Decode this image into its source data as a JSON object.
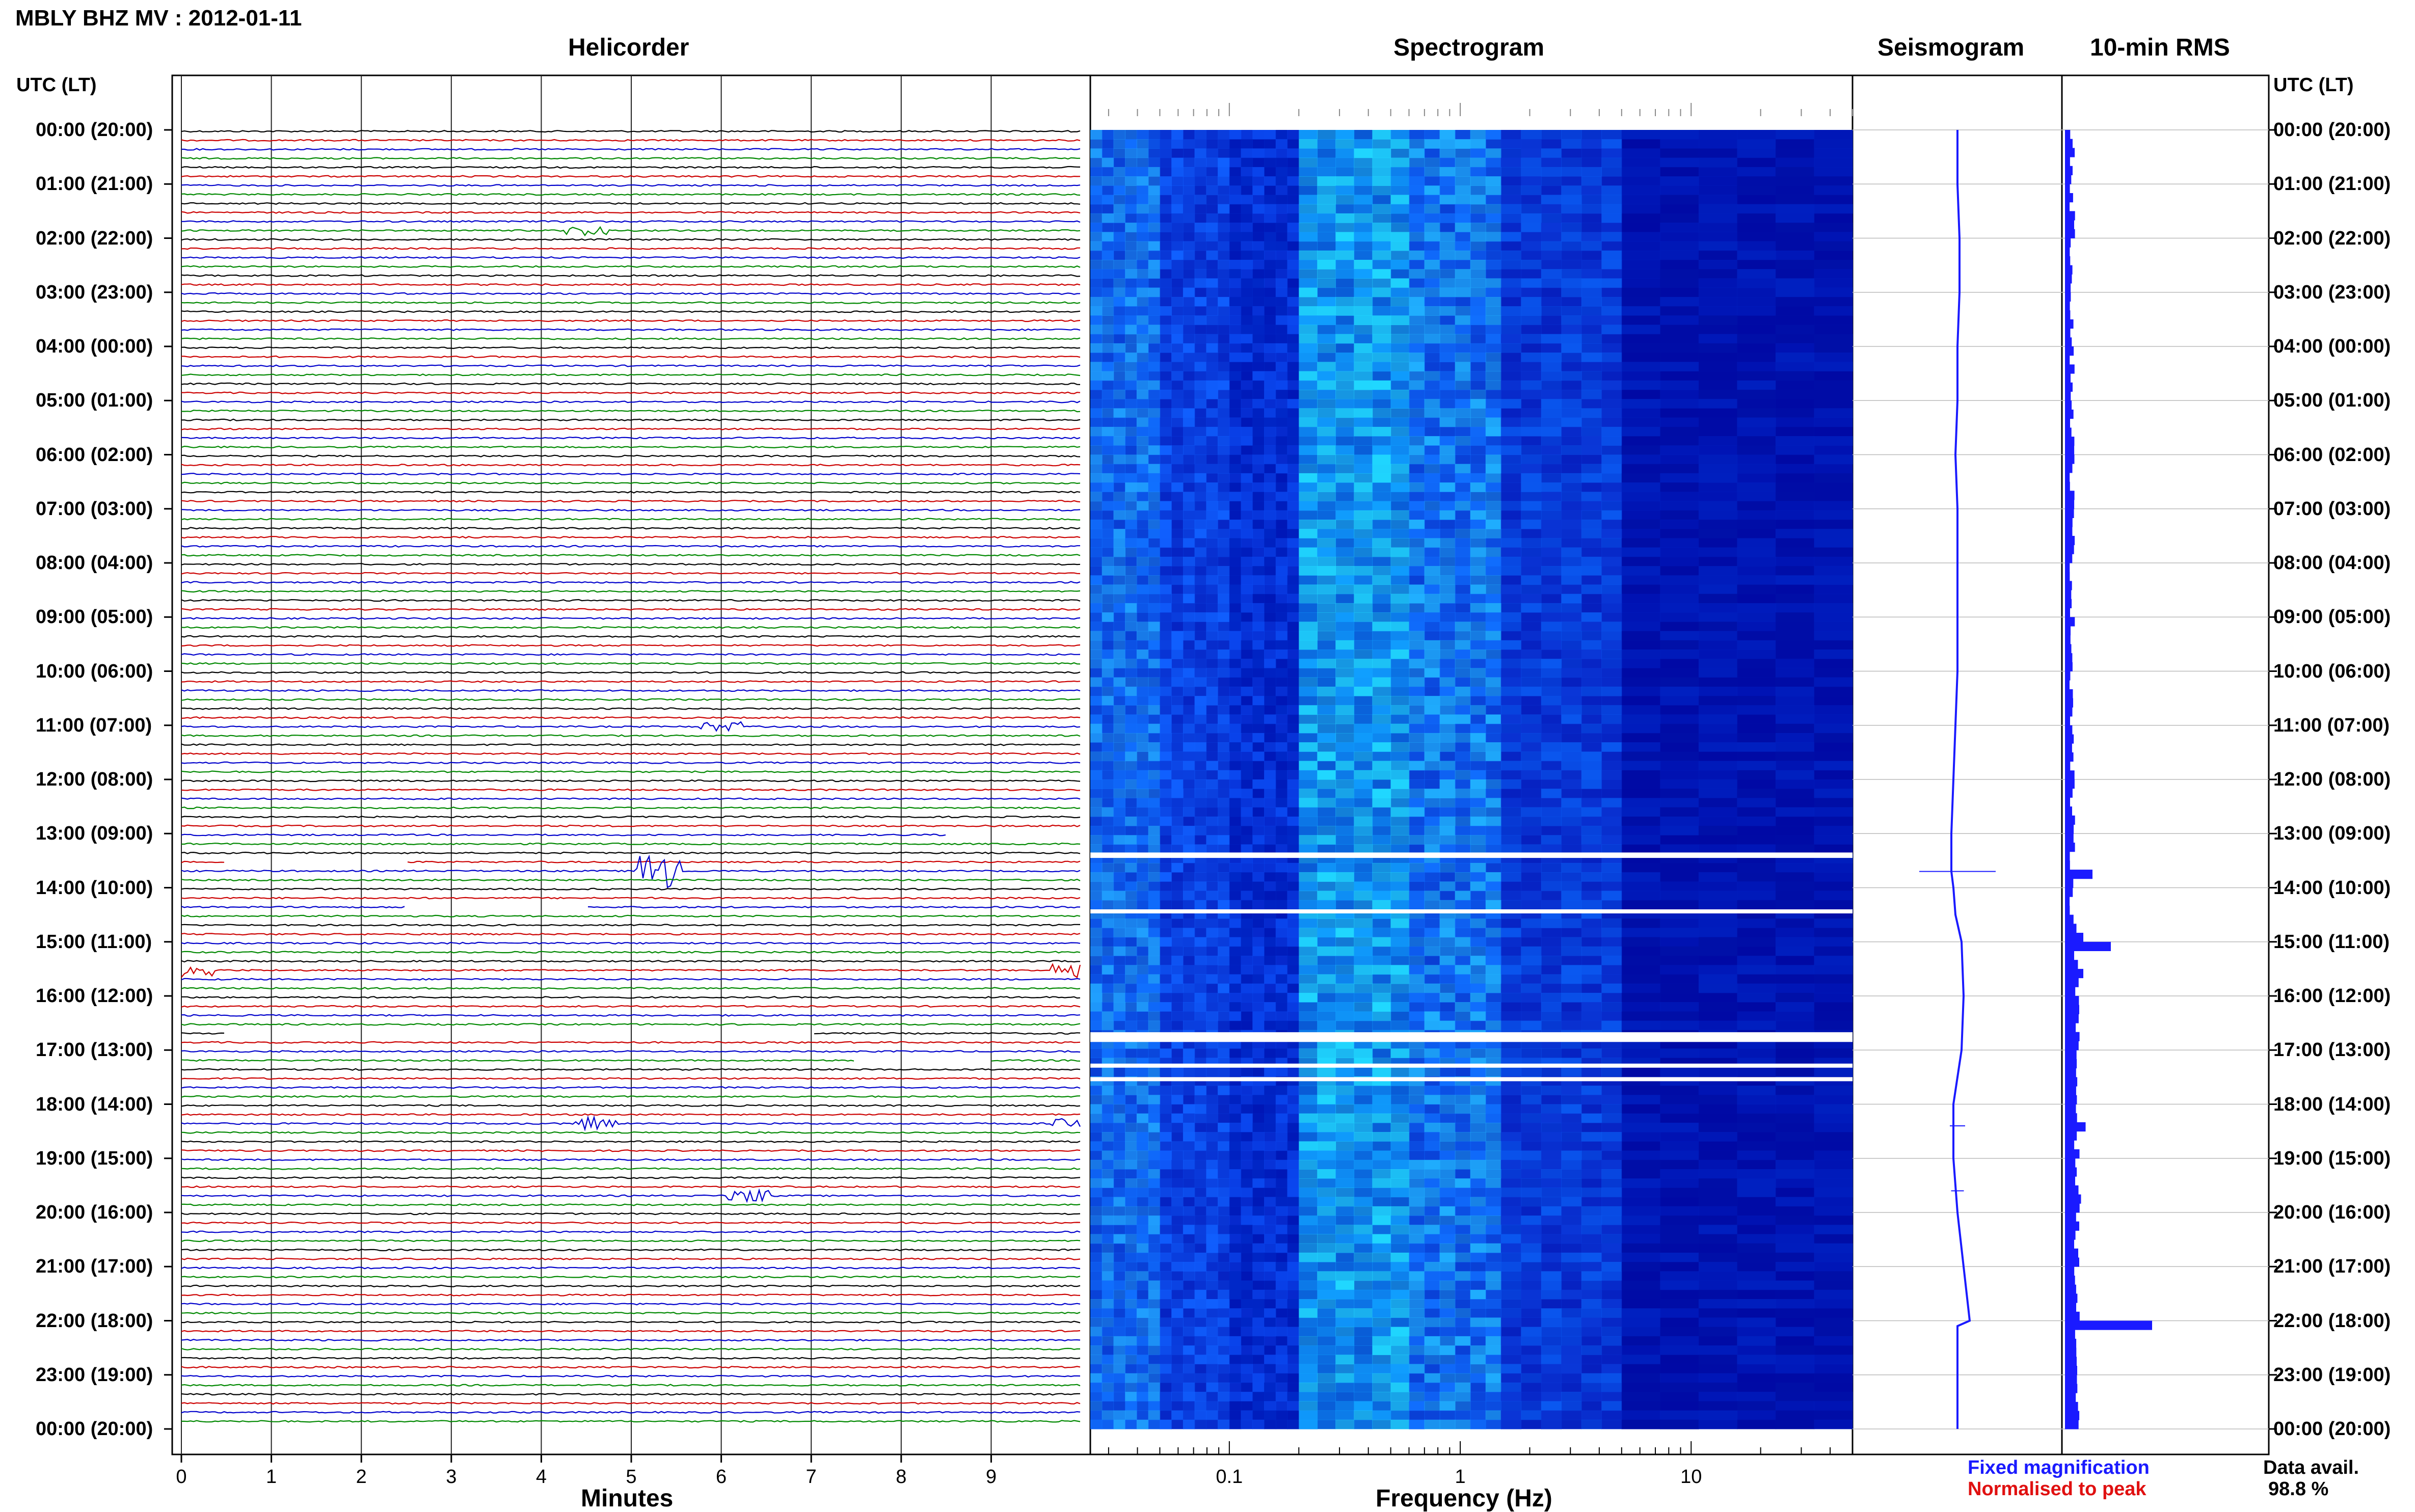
{
  "page_title": "MBLY BHZ MV : 2012-01-11",
  "panels": {
    "helicorder": "Helicorder",
    "spectrogram": "Spectrogram",
    "seismogram": "Seismogram",
    "rms": "10-min RMS"
  },
  "axis_header_left": "UTC (LT)",
  "axis_header_right": "UTC (LT)",
  "time_labels": [
    "00:00 (20:00)",
    "01:00 (21:00)",
    "02:00 (22:00)",
    "03:00 (23:00)",
    "04:00 (00:00)",
    "05:00 (01:00)",
    "06:00 (02:00)",
    "07:00 (03:00)",
    "08:00 (04:00)",
    "09:00 (05:00)",
    "10:00 (06:00)",
    "11:00 (07:00)",
    "12:00 (08:00)",
    "13:00 (09:00)",
    "14:00 (10:00)",
    "15:00 (11:00)",
    "16:00 (12:00)",
    "17:00 (13:00)",
    "18:00 (14:00)",
    "19:00 (15:00)",
    "20:00 (16:00)",
    "21:00 (17:00)",
    "22:00 (18:00)",
    "23:00 (19:00)",
    "00:00 (20:00)"
  ],
  "helicorder_xlabel": "Minutes",
  "helicorder_ticks": [
    "0",
    "1",
    "2",
    "3",
    "4",
    "5",
    "6",
    "7",
    "8",
    "9"
  ],
  "spectrogram_xlabel": "Frequency (Hz)",
  "spectrogram_ticks": [
    "0.1",
    "1",
    "10"
  ],
  "legend": {
    "fixed": "Fixed magnification",
    "normalised": "Normalised to peak"
  },
  "data_avail_label": "Data avail.",
  "data_avail_value": "98.8 %",
  "colors": {
    "trace_black": "#000000",
    "trace_red": "#cc0000",
    "trace_blue": "#0000cc",
    "trace_green": "#008800",
    "seismo_blue": "#1a1aff",
    "rms_blue": "#1a1aff",
    "spec_dark": "#0000a0",
    "spec_mid": "#1060ff",
    "spec_bright": "#20e0ff"
  },
  "chart_data": [
    {
      "type": "line",
      "panel": "helicorder",
      "title": "Helicorder",
      "xlabel": "Minutes",
      "xlim": [
        0,
        10
      ],
      "ylabel": "UTC (LT)",
      "lines_per_hour": 6,
      "hours": 24,
      "color_cycle": [
        "black",
        "red",
        "blue",
        "green"
      ],
      "events": [
        {
          "hour": 1.8,
          "minute": 4.5,
          "amp": 1.0
        },
        {
          "hour": 11.0,
          "minute": 6.0,
          "amp": 1.0
        },
        {
          "hour": 13.65,
          "minute": 5.3,
          "amp": 4.0
        },
        {
          "hour": 15.5,
          "minute": 0.1,
          "amp": 1.5
        },
        {
          "hour": 15.5,
          "minute": 9.9,
          "amp": 1.5
        },
        {
          "hour": 18.3,
          "minute": 4.6,
          "amp": 1.5
        },
        {
          "hour": 18.3,
          "minute": 9.9,
          "amp": 1.5
        },
        {
          "hour": 19.6,
          "minute": 6.3,
          "amp": 1.5
        }
      ],
      "gaps": [
        {
          "hour": 13.0,
          "from_minute": 8.5,
          "to_minute": 10
        },
        {
          "hour": 13.5,
          "from_minute": 0.5,
          "to_minute": 2.5
        },
        {
          "hour": 14.33,
          "from_minute": 2.5,
          "to_minute": 4.5
        },
        {
          "hour": 16.67,
          "from_minute": 0.5,
          "to_minute": 7.0
        },
        {
          "hour": 17.17,
          "from_minute": 7.5,
          "to_minute": 9.0
        }
      ]
    },
    {
      "type": "heatmap",
      "panel": "spectrogram",
      "title": "Spectrogram",
      "xlabel": "Frequency (Hz)",
      "xscale": "log",
      "xlim": [
        0.025,
        50
      ],
      "gap_bands_hours": [
        [
          13.35,
          13.45
        ],
        [
          14.4,
          14.47
        ],
        [
          16.67,
          16.85
        ],
        [
          17.25,
          17.3
        ],
        [
          17.5,
          17.55
        ]
      ]
    },
    {
      "type": "line",
      "panel": "seismogram",
      "title": "Seismogram",
      "points": [
        [
          0,
          0
        ],
        [
          1,
          0
        ],
        [
          2,
          0.1
        ],
        [
          3,
          0.1
        ],
        [
          4,
          0
        ],
        [
          5,
          0
        ],
        [
          6,
          -0.1
        ],
        [
          7,
          0
        ],
        [
          8,
          0
        ],
        [
          9,
          0
        ],
        [
          10,
          0
        ],
        [
          11,
          -0.1
        ],
        [
          12,
          -0.2
        ],
        [
          13,
          -0.3
        ],
        [
          13.7,
          -0.3
        ],
        [
          14,
          -0.2
        ],
        [
          14.5,
          -0.1
        ],
        [
          15,
          0.2
        ],
        [
          16,
          0.3
        ],
        [
          17,
          0.2
        ],
        [
          18,
          -0.2
        ],
        [
          19,
          -0.2
        ],
        [
          20,
          0
        ],
        [
          21,
          0.3
        ],
        [
          22,
          0.6
        ],
        [
          22.1,
          0
        ],
        [
          23,
          0
        ],
        [
          24,
          0
        ]
      ],
      "spikes": [
        {
          "hour": 13.7,
          "amp": 3.0
        },
        {
          "hour": 18.4,
          "amp": 0.6
        },
        {
          "hour": 19.6,
          "amp": 0.5
        }
      ]
    },
    {
      "type": "bar",
      "panel": "rms",
      "title": "10-min RMS",
      "bins_per_hour": 6,
      "baseline": 1.0,
      "peaks": [
        {
          "hour": 13.65,
          "value": 6.0
        },
        {
          "hour": 14.6,
          "value": 2.5
        },
        {
          "hour": 14.9,
          "value": 4.0
        },
        {
          "hour": 15.0,
          "value": 10.0
        },
        {
          "hour": 15.5,
          "value": 4.0
        },
        {
          "hour": 18.3,
          "value": 4.5
        },
        {
          "hour": 19.6,
          "value": 3.5
        },
        {
          "hour": 22.0,
          "value": 19.0
        }
      ]
    }
  ]
}
